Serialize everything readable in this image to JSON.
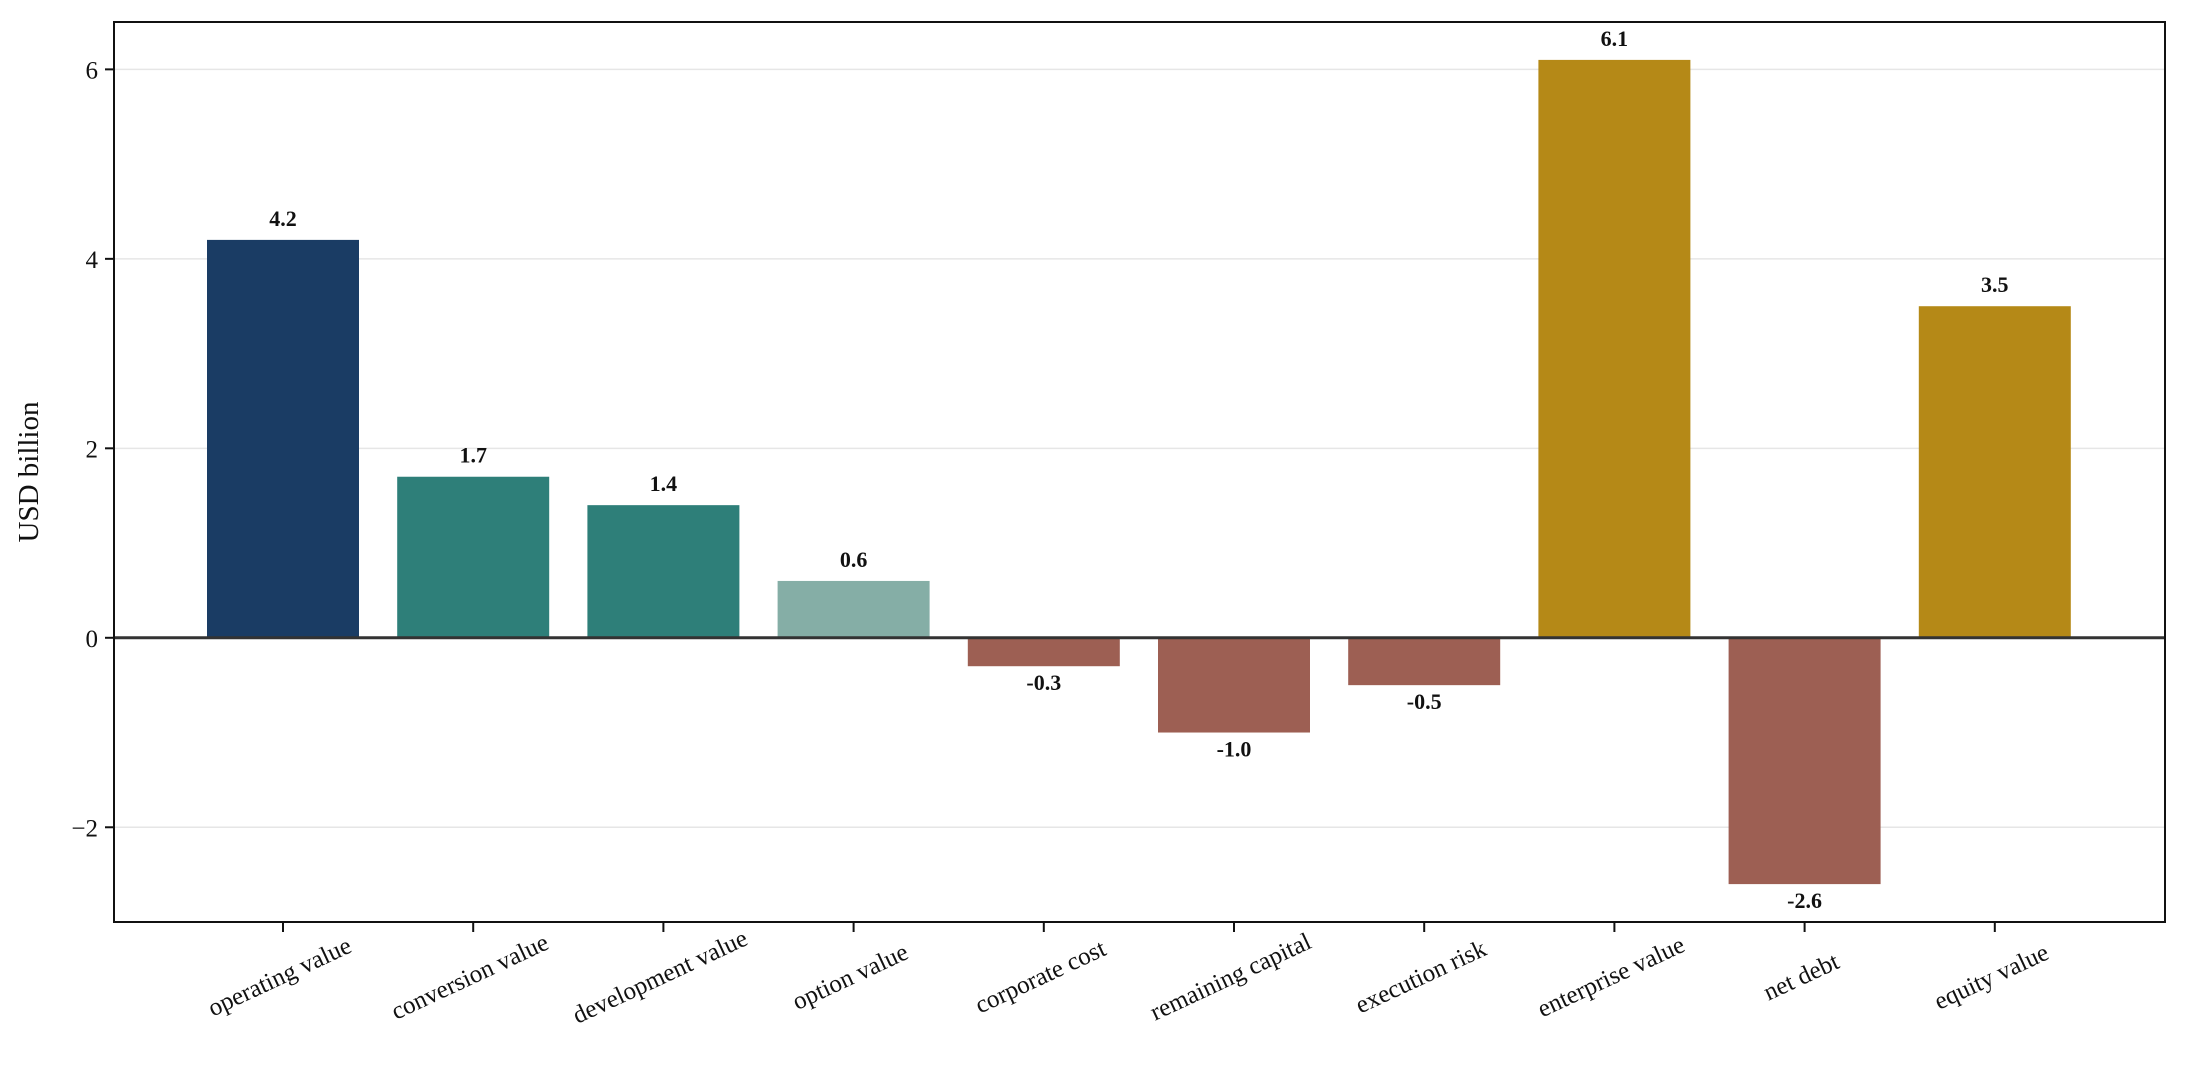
{
  "chart_data": {
    "type": "bar",
    "title": "",
    "xlabel": "",
    "ylabel": "USD billion",
    "ylim": [
      -3,
      6.5
    ],
    "yticks": [
      -2,
      0,
      2,
      4,
      6
    ],
    "ytick_labels": [
      "−2",
      "0",
      "2",
      "4",
      "6"
    ],
    "grid": "horizontal",
    "categories": [
      "operating value",
      "conversion value",
      "development value",
      "option value",
      "corporate cost",
      "remaining capital",
      "execution risk",
      "enterprise value",
      "net debt",
      "equity value"
    ],
    "values": [
      4.2,
      1.7,
      1.4,
      0.6,
      -0.3,
      -1.0,
      -0.5,
      6.1,
      -2.6,
      3.5
    ],
    "value_labels": [
      "4.2",
      "1.7",
      "1.4",
      "0.6",
      "-0.3",
      "-1.0",
      "-0.5",
      "6.1",
      "-2.6",
      "3.5"
    ],
    "colors": [
      "#1a3c64",
      "#2e7f79",
      "#2e7f79",
      "#85aea6",
      "#9d5f53",
      "#9d5f53",
      "#9d5f53",
      "#b58917",
      "#9d5f53",
      "#b58917"
    ]
  }
}
